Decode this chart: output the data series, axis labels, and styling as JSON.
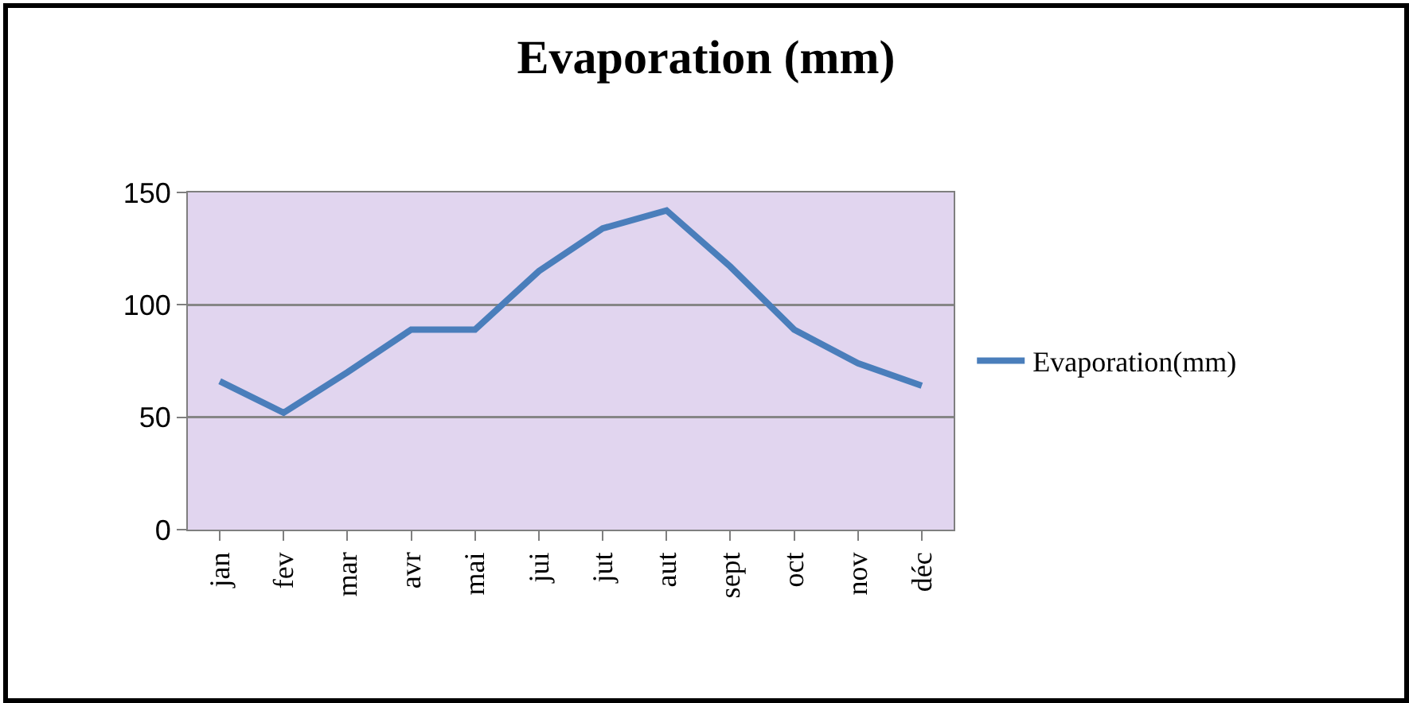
{
  "chart_data": {
    "type": "line",
    "title": "Evaporation (mm)",
    "categories": [
      "jan",
      "fev",
      "mar",
      "avr",
      "mai",
      "jui",
      "jut",
      "aut",
      "sept",
      "oct",
      "nov",
      "déc"
    ],
    "series": [
      {
        "name": "Evaporation(mm)",
        "color": "#4a7ebb",
        "values": [
          66,
          52,
          70,
          89,
          89,
          115,
          134,
          142,
          117,
          89,
          74,
          64
        ]
      }
    ],
    "ylim": [
      0,
      150
    ],
    "yticks": [
      0,
      50,
      100,
      150
    ],
    "grid": "y",
    "legend": "right",
    "marker": "none",
    "line_style": "solid"
  }
}
